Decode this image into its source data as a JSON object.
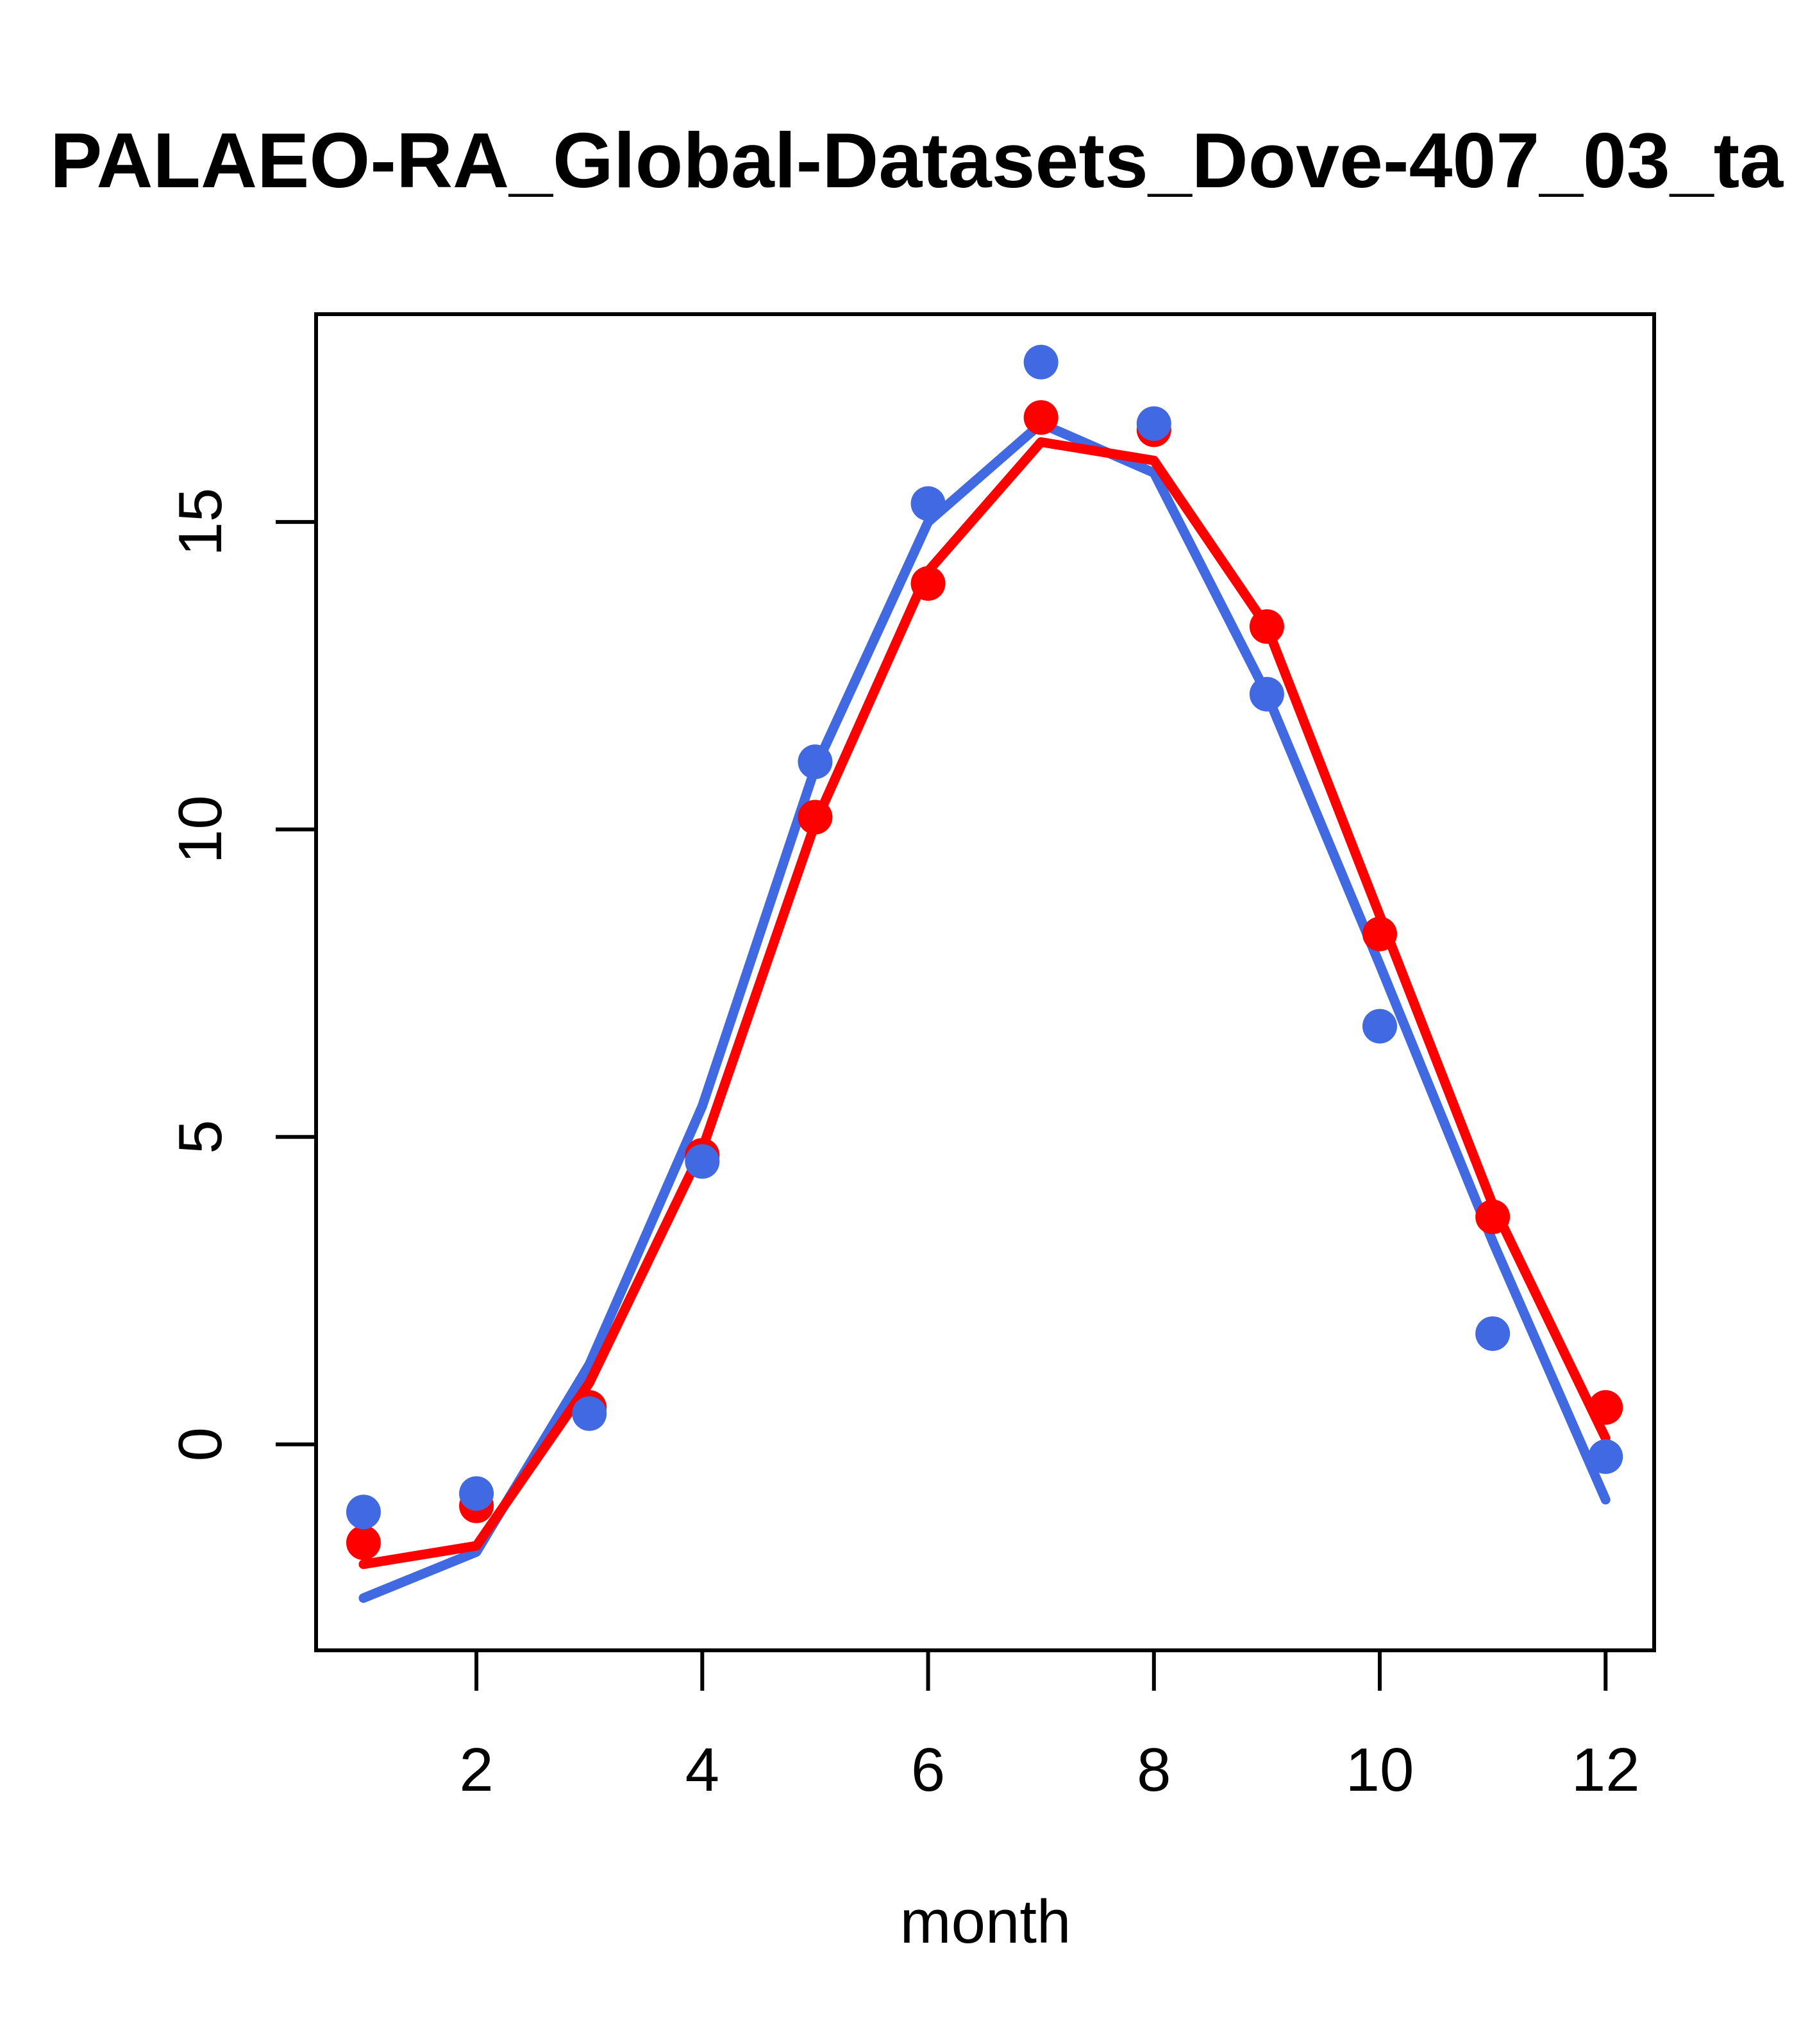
{
  "title": "PALAEO-RA_Global-Datasets_Dove-407_03_ta",
  "colors": {
    "blue": "#4169E1",
    "red": "#FF0000",
    "axis": "#000000",
    "background": "#FFFFFF"
  },
  "chart_data": {
    "type": "line",
    "title": "PALAEO-RA_Global-Datasets_Dove-407_03_ta",
    "xlabel": "month",
    "ylabel": "",
    "x": [
      1,
      2,
      3,
      4,
      5,
      6,
      7,
      8,
      9,
      10,
      11,
      12
    ],
    "x_ticks": [
      2,
      4,
      6,
      8,
      10,
      12
    ],
    "y_ticks": [
      0,
      5,
      10,
      15
    ],
    "xlim": [
      0.58,
      12.43
    ],
    "ylim": [
      -3.35,
      18.38
    ],
    "grid": false,
    "legend": "none",
    "series": [
      {
        "name": "blue-line",
        "kind": "line",
        "color": "#4169E1",
        "values": [
          -2.5,
          -1.75,
          1.3,
          5.5,
          11.0,
          15.0,
          16.6,
          15.8,
          12.2,
          7.8,
          3.3,
          -0.9
        ]
      },
      {
        "name": "red-line",
        "kind": "line",
        "color": "#FF0000",
        "values": [
          -1.95,
          -1.65,
          1.0,
          4.8,
          10.1,
          14.2,
          16.3,
          16.0,
          13.3,
          8.6,
          3.9,
          0.1
        ]
      },
      {
        "name": "red-points",
        "kind": "points",
        "color": "#FF0000",
        "values": [
          -1.6,
          -1.0,
          0.6,
          4.7,
          10.2,
          14.0,
          16.7,
          16.5,
          13.3,
          8.3,
          3.7,
          0.6
        ]
      },
      {
        "name": "blue-points",
        "kind": "points",
        "color": "#4169E1",
        "values": [
          -1.1,
          -0.8,
          0.5,
          4.6,
          11.1,
          15.3,
          17.6,
          16.6,
          12.2,
          6.8,
          1.8,
          -0.2
        ]
      }
    ]
  }
}
